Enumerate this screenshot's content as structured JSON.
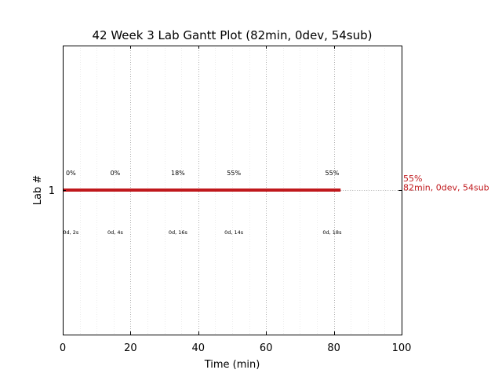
{
  "chart_data": {
    "type": "bar",
    "title": "42 Week 3 Lab Gantt Plot (82min, 0dev, 54sub)",
    "xlabel": "Time (min)",
    "ylabel": "Lab #",
    "xlim": [
      0,
      100
    ],
    "xticks": [
      "0",
      "20",
      "40",
      "60",
      "80",
      "100"
    ],
    "yticks": [
      "1"
    ],
    "grid": true,
    "bar_color": "#c0181c",
    "series": [
      {
        "lab": 1,
        "start": 0,
        "end": 82,
        "summary_percent": "55%",
        "summary_detail": "82min, 0dev, 54sub"
      }
    ],
    "checkpoints": [
      {
        "time": 2.4,
        "percent": "0%",
        "detail": "0d, 2s"
      },
      {
        "time": 15.5,
        "percent": "0%",
        "detail": "0d, 4s"
      },
      {
        "time": 34,
        "percent": "18%",
        "detail": "0d, 16s"
      },
      {
        "time": 50.5,
        "percent": "55%",
        "detail": "0d, 14s"
      },
      {
        "time": 79.5,
        "percent": "55%",
        "detail": "0d, 18s"
      }
    ]
  }
}
